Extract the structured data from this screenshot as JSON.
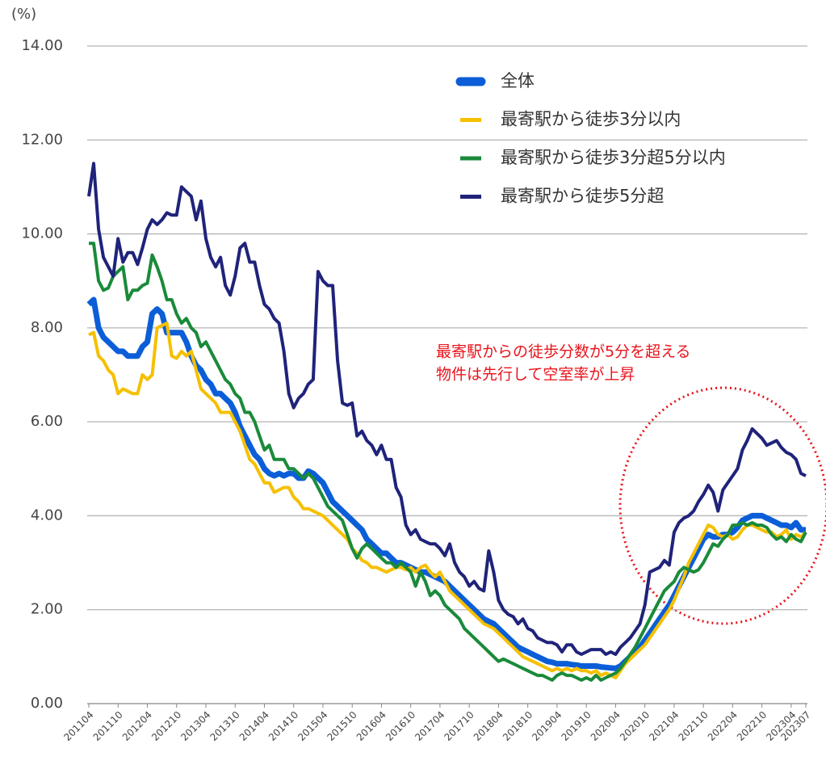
{
  "chart_data": {
    "type": "line",
    "ylabel": "(%)",
    "ylim": [
      0,
      14
    ],
    "yticks": [
      {
        "value": 0,
        "label": "0.00"
      },
      {
        "value": 2,
        "label": "2.00"
      },
      {
        "value": 4,
        "label": "4.00"
      },
      {
        "value": 6,
        "label": "6.00"
      },
      {
        "value": 8,
        "label": "8.00"
      },
      {
        "value": 10,
        "label": "10.00"
      },
      {
        "value": 12,
        "label": "12.00"
      },
      {
        "value": 14,
        "label": "14.00"
      }
    ],
    "grid": true,
    "legend": "upper right",
    "annotation": [
      "最寄駅からの徒歩分数が5分を超える",
      "物件は先行して空室率が上昇"
    ],
    "categories": [
      "201104",
      null,
      null,
      null,
      null,
      null,
      "201110",
      null,
      null,
      null,
      null,
      null,
      "201204",
      null,
      null,
      null,
      null,
      null,
      "201210",
      null,
      null,
      null,
      null,
      null,
      "201304",
      null,
      null,
      null,
      null,
      null,
      "201310",
      null,
      null,
      null,
      null,
      null,
      "201404",
      null,
      null,
      null,
      null,
      null,
      "201410",
      null,
      null,
      null,
      null,
      null,
      "201504",
      null,
      null,
      null,
      null,
      null,
      "201510",
      null,
      null,
      null,
      null,
      null,
      "201604",
      null,
      null,
      null,
      null,
      null,
      "201610",
      null,
      null,
      null,
      null,
      null,
      "201704",
      null,
      null,
      null,
      null,
      null,
      "201710",
      null,
      null,
      null,
      null,
      null,
      "201804",
      null,
      null,
      null,
      null,
      null,
      "201810",
      null,
      null,
      null,
      null,
      null,
      "201904",
      null,
      null,
      null,
      null,
      null,
      "201910",
      null,
      null,
      null,
      null,
      null,
      "202004",
      null,
      null,
      null,
      null,
      null,
      "202010",
      null,
      null,
      null,
      null,
      null,
      "202104",
      null,
      null,
      null,
      null,
      null,
      "202110",
      null,
      null,
      null,
      null,
      null,
      "202204",
      null,
      null,
      null,
      null,
      null,
      "202210",
      null,
      null,
      null,
      null,
      null,
      "202304",
      null,
      null,
      "202307"
    ],
    "series": [
      {
        "name": "全体",
        "color": "#0b5ed7",
        "values": [
          8.5,
          8.6,
          8.0,
          7.8,
          7.7,
          7.6,
          7.5,
          7.5,
          7.4,
          7.4,
          7.4,
          7.6,
          7.7,
          8.3,
          8.4,
          8.3,
          7.9,
          7.9,
          7.9,
          7.9,
          7.7,
          7.4,
          7.2,
          7.1,
          6.9,
          6.8,
          6.6,
          6.6,
          6.5,
          6.4,
          6.2,
          5.9,
          5.7,
          5.5,
          5.3,
          5.2,
          5.0,
          4.9,
          4.85,
          4.9,
          4.85,
          4.9,
          4.9,
          4.8,
          4.8,
          4.95,
          4.9,
          4.8,
          4.7,
          4.5,
          4.3,
          4.2,
          4.1,
          4.0,
          3.9,
          3.8,
          3.7,
          3.5,
          3.4,
          3.3,
          3.2,
          3.2,
          3.1,
          3.0,
          3.0,
          2.95,
          2.9,
          2.85,
          2.8,
          2.8,
          2.75,
          2.7,
          2.65,
          2.6,
          2.5,
          2.4,
          2.3,
          2.2,
          2.1,
          2.0,
          1.9,
          1.8,
          1.75,
          1.7,
          1.6,
          1.5,
          1.4,
          1.3,
          1.2,
          1.15,
          1.1,
          1.05,
          1.0,
          0.95,
          0.9,
          0.88,
          0.85,
          0.85,
          0.85,
          0.83,
          0.82,
          0.8,
          0.8,
          0.8,
          0.8,
          0.78,
          0.77,
          0.76,
          0.75,
          0.8,
          0.9,
          1.0,
          1.1,
          1.2,
          1.35,
          1.5,
          1.65,
          1.8,
          1.95,
          2.1,
          2.3,
          2.5,
          2.7,
          2.9,
          3.1,
          3.3,
          3.5,
          3.6,
          3.55,
          3.55,
          3.6,
          3.6,
          3.65,
          3.75,
          3.9,
          3.95,
          4.0,
          4.0,
          4.0,
          3.95,
          3.9,
          3.85,
          3.8,
          3.8,
          3.75,
          3.85,
          3.7,
          3.7
        ]
      },
      {
        "name": "最寄駅から徒歩3分以内",
        "color": "#f5c000",
        "values": [
          7.85,
          7.9,
          7.4,
          7.3,
          7.1,
          7.0,
          6.6,
          6.7,
          6.65,
          6.6,
          6.6,
          7.0,
          6.9,
          7.0,
          8.0,
          8.05,
          8.1,
          7.4,
          7.35,
          7.5,
          7.4,
          7.5,
          7.1,
          6.7,
          6.6,
          6.5,
          6.4,
          6.2,
          6.2,
          6.2,
          6.0,
          5.8,
          5.5,
          5.2,
          5.1,
          4.9,
          4.7,
          4.7,
          4.5,
          4.55,
          4.6,
          4.6,
          4.4,
          4.3,
          4.15,
          4.15,
          4.1,
          4.05,
          4.0,
          3.9,
          3.8,
          3.7,
          3.6,
          3.5,
          3.3,
          3.2,
          3.05,
          3.0,
          2.9,
          2.9,
          2.85,
          2.8,
          2.85,
          2.9,
          2.9,
          2.85,
          2.9,
          2.8,
          2.9,
          2.95,
          2.8,
          2.7,
          2.8,
          2.6,
          2.4,
          2.3,
          2.2,
          2.1,
          2.0,
          1.9,
          1.8,
          1.7,
          1.65,
          1.6,
          1.5,
          1.4,
          1.3,
          1.2,
          1.1,
          1.0,
          0.95,
          0.9,
          0.85,
          0.8,
          0.75,
          0.7,
          0.75,
          0.7,
          0.75,
          0.7,
          0.75,
          0.7,
          0.7,
          0.65,
          0.7,
          0.6,
          0.65,
          0.6,
          0.55,
          0.7,
          0.85,
          0.95,
          1.05,
          1.15,
          1.25,
          1.4,
          1.55,
          1.7,
          1.85,
          2.0,
          2.2,
          2.45,
          2.7,
          3.0,
          3.2,
          3.4,
          3.6,
          3.8,
          3.75,
          3.6,
          3.55,
          3.6,
          3.5,
          3.55,
          3.7,
          3.8,
          3.8,
          3.75,
          3.7,
          3.65,
          3.65,
          3.55,
          3.6,
          3.7,
          3.5,
          3.6,
          3.55,
          3.65
        ]
      },
      {
        "name": "最寄駅から徒歩3分超5分以内",
        "color": "#1a8a3a",
        "values": [
          9.8,
          9.8,
          9.0,
          8.8,
          8.85,
          9.1,
          9.2,
          9.3,
          8.6,
          8.8,
          8.8,
          8.9,
          8.95,
          9.55,
          9.3,
          9.0,
          8.6,
          8.6,
          8.3,
          8.1,
          8.2,
          8.0,
          7.9,
          7.6,
          7.7,
          7.5,
          7.3,
          7.1,
          6.9,
          6.8,
          6.6,
          6.5,
          6.2,
          6.2,
          6.0,
          5.7,
          5.4,
          5.5,
          5.2,
          5.2,
          5.2,
          5.0,
          5.0,
          4.9,
          4.8,
          4.9,
          4.8,
          4.6,
          4.4,
          4.2,
          4.1,
          4.0,
          3.9,
          3.6,
          3.3,
          3.1,
          3.3,
          3.4,
          3.3,
          3.2,
          3.1,
          3.0,
          3.0,
          2.9,
          3.0,
          2.9,
          2.8,
          2.5,
          2.8,
          2.6,
          2.3,
          2.4,
          2.3,
          2.1,
          2.0,
          1.9,
          1.8,
          1.6,
          1.5,
          1.4,
          1.3,
          1.2,
          1.1,
          1.0,
          0.9,
          0.95,
          0.9,
          0.85,
          0.8,
          0.75,
          0.7,
          0.65,
          0.6,
          0.6,
          0.55,
          0.5,
          0.6,
          0.65,
          0.6,
          0.6,
          0.55,
          0.5,
          0.55,
          0.5,
          0.6,
          0.5,
          0.55,
          0.6,
          0.65,
          0.75,
          0.9,
          1.05,
          1.2,
          1.4,
          1.6,
          1.8,
          2.0,
          2.2,
          2.4,
          2.5,
          2.6,
          2.8,
          2.9,
          2.85,
          2.8,
          2.85,
          3.0,
          3.2,
          3.4,
          3.35,
          3.5,
          3.6,
          3.8,
          3.8,
          3.85,
          3.8,
          3.85,
          3.8,
          3.8,
          3.75,
          3.6,
          3.5,
          3.55,
          3.45,
          3.6,
          3.5,
          3.45,
          3.65
        ]
      },
      {
        "name": "最寄駅から徒歩5分超",
        "color": "#1f237a",
        "values": [
          10.8,
          11.5,
          10.1,
          9.5,
          9.3,
          9.1,
          9.9,
          9.4,
          9.6,
          9.6,
          9.35,
          9.7,
          10.1,
          10.3,
          10.2,
          10.3,
          10.45,
          10.4,
          10.4,
          11.0,
          10.9,
          10.8,
          10.3,
          10.7,
          9.9,
          9.5,
          9.3,
          9.5,
          8.9,
          8.7,
          9.1,
          9.7,
          9.8,
          9.4,
          9.4,
          8.9,
          8.5,
          8.4,
          8.2,
          8.1,
          7.5,
          6.6,
          6.3,
          6.5,
          6.6,
          6.8,
          6.9,
          9.2,
          9.0,
          8.9,
          8.9,
          7.3,
          6.4,
          6.35,
          6.4,
          5.7,
          5.8,
          5.6,
          5.5,
          5.3,
          5.5,
          5.2,
          5.2,
          4.6,
          4.4,
          3.8,
          3.6,
          3.7,
          3.5,
          3.45,
          3.4,
          3.4,
          3.3,
          3.15,
          3.4,
          3.0,
          2.8,
          2.7,
          2.5,
          2.6,
          2.45,
          2.4,
          3.25,
          2.8,
          2.2,
          2.0,
          1.9,
          1.85,
          1.7,
          1.8,
          1.6,
          1.55,
          1.4,
          1.35,
          1.3,
          1.3,
          1.25,
          1.1,
          1.25,
          1.25,
          1.1,
          1.05,
          1.1,
          1.15,
          1.15,
          1.15,
          1.05,
          1.1,
          1.05,
          1.2,
          1.3,
          1.4,
          1.55,
          1.7,
          2.1,
          2.8,
          2.85,
          2.9,
          3.05,
          2.95,
          3.65,
          3.85,
          3.95,
          4.0,
          4.1,
          4.3,
          4.45,
          4.65,
          4.5,
          4.1,
          4.55,
          4.7,
          4.85,
          5.0,
          5.4,
          5.6,
          5.85,
          5.75,
          5.65,
          5.5,
          5.55,
          5.6,
          5.45,
          5.35,
          5.3,
          5.2,
          4.9,
          4.85
        ]
      }
    ]
  }
}
